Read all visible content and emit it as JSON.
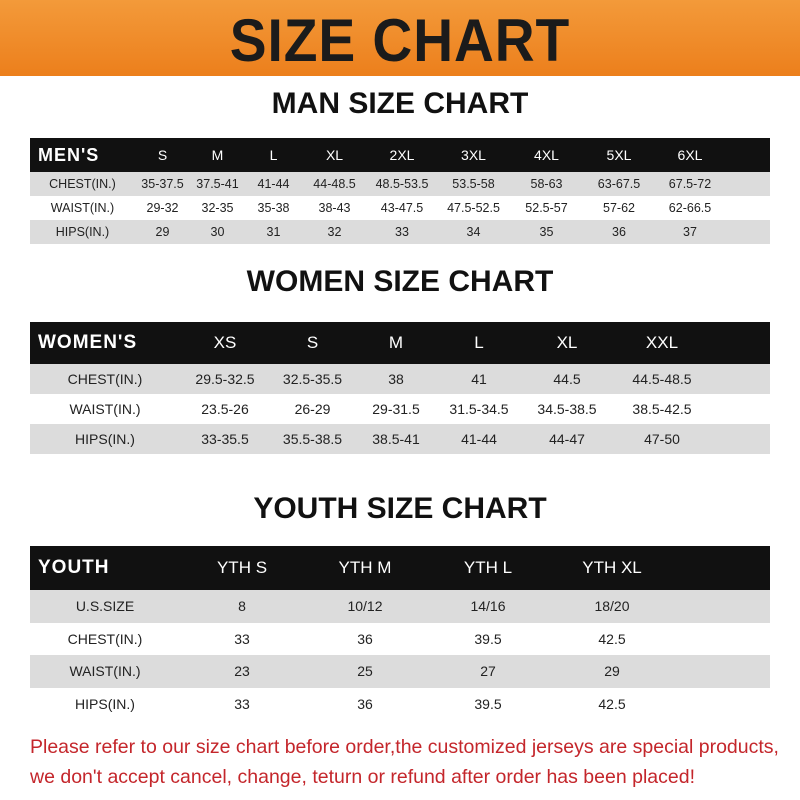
{
  "banner": {
    "title": "SIZE CHART",
    "color": "#ef8a28"
  },
  "men": {
    "title": "MAN SIZE CHART",
    "header": [
      "MEN'S",
      "S",
      "M",
      "L",
      "XL",
      "2XL",
      "3XL",
      "4XL",
      "5XL",
      "6XL"
    ],
    "rows": [
      [
        "CHEST(IN.)",
        "35-37.5",
        "37.5-41",
        "41-44",
        "44-48.5",
        "48.5-53.5",
        "53.5-58",
        "58-63",
        "63-67.5",
        "67.5-72"
      ],
      [
        "WAIST(IN.)",
        "29-32",
        "32-35",
        "35-38",
        "38-43",
        "43-47.5",
        "47.5-52.5",
        "52.5-57",
        "57-62",
        "62-66.5"
      ],
      [
        "HIPS(IN.)",
        "29",
        "30",
        "31",
        "32",
        "33",
        "34",
        "35",
        "36",
        "37"
      ]
    ]
  },
  "women": {
    "title": "WOMEN SIZE CHART",
    "header": [
      "WOMEN'S",
      "XS",
      "S",
      "M",
      "L",
      "XL",
      "XXL"
    ],
    "rows": [
      [
        "CHEST(IN.)",
        "29.5-32.5",
        "32.5-35.5",
        "38",
        "41",
        "44.5",
        "44.5-48.5"
      ],
      [
        "WAIST(IN.)",
        "23.5-26",
        "26-29",
        "29-31.5",
        "31.5-34.5",
        "34.5-38.5",
        "38.5-42.5"
      ],
      [
        "HIPS(IN.)",
        "33-35.5",
        "35.5-38.5",
        "38.5-41",
        "41-44",
        "44-47",
        "47-50"
      ]
    ]
  },
  "youth": {
    "title": "YOUTH SIZE CHART",
    "header": [
      "YOUTH",
      "YTH S",
      "YTH M",
      "YTH L",
      "YTH XL"
    ],
    "rows": [
      [
        "U.S.SIZE",
        "8",
        "10/12",
        "14/16",
        "18/20"
      ],
      [
        "CHEST(IN.)",
        "33",
        "36",
        "39.5",
        "42.5"
      ],
      [
        "WAIST(IN.)",
        "23",
        "25",
        "27",
        "29"
      ],
      [
        "HIPS(IN.)",
        "33",
        "36",
        "39.5",
        "42.5"
      ]
    ]
  },
  "note": {
    "line1": "Please refer to our size chart before order,the customized jerseys are special products,",
    "line2": "we don't accept cancel, change, teturn or refund after order has been placed!",
    "color": "#c4262b"
  }
}
